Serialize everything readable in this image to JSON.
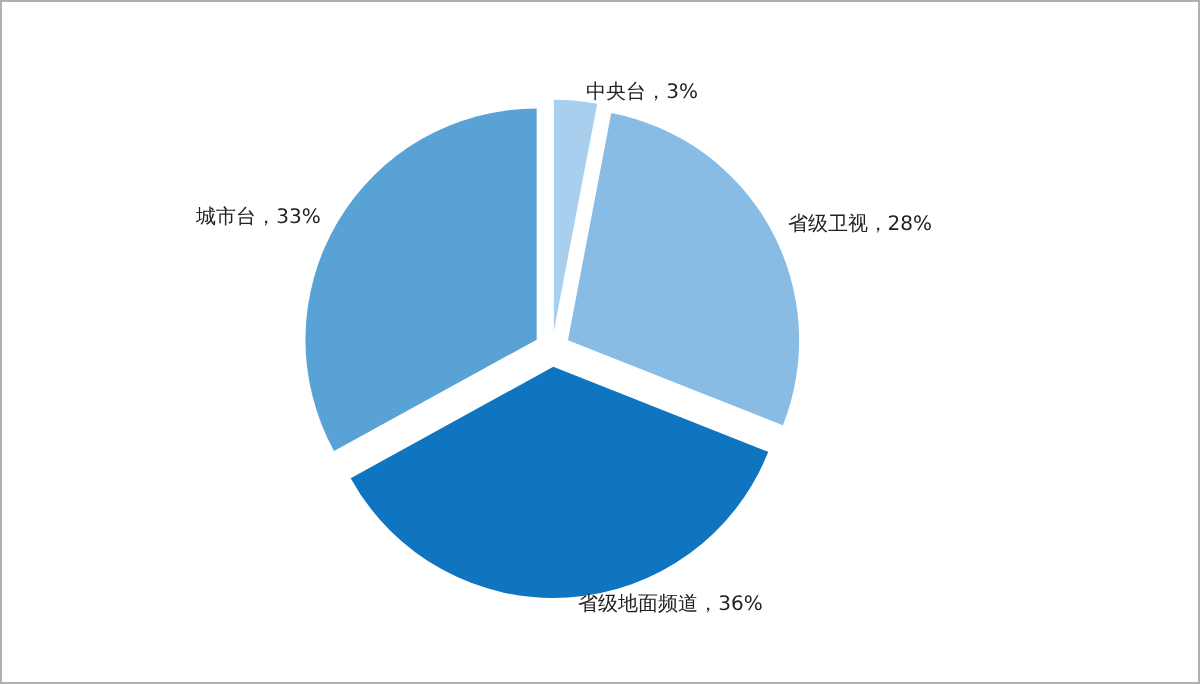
{
  "chart_data": {
    "type": "pie",
    "categories": [
      "中央台",
      "省级卫视",
      "省级地面频道",
      "城市台"
    ],
    "values": [
      3,
      28,
      36,
      33
    ],
    "value_labels": [
      "3%",
      "28%",
      "36%",
      "33%"
    ],
    "colors": [
      "#a8cfee",
      "#88bce4",
      "#0f75c0",
      "#58a2d6"
    ],
    "legend": false
  }
}
